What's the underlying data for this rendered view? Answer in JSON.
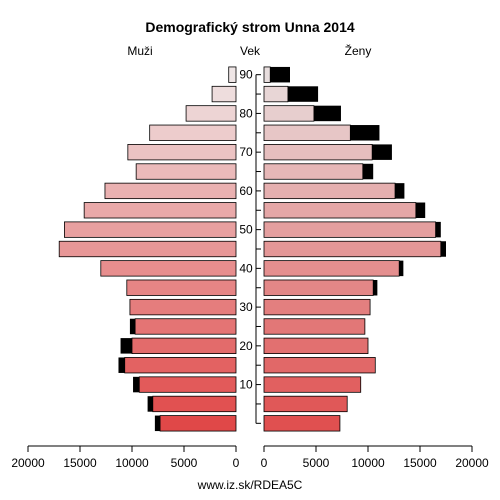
{
  "chart_data": {
    "type": "bar",
    "title": "Demografický strom Unna 2014",
    "left_label": "Muži",
    "right_label": "Ženy",
    "axis_label": "Vek",
    "footer": "www.iz.sk/RDEA5C",
    "xlim": [
      0,
      20000
    ],
    "x_ticks": [
      0,
      5000,
      10000,
      15000,
      20000
    ],
    "x_tick_labels": [
      "0",
      "5000",
      "10000",
      "15000",
      "20000"
    ],
    "age_ticks": [
      10,
      20,
      30,
      40,
      50,
      60,
      70,
      80,
      90
    ],
    "age_groups": [
      "0-4",
      "5-9",
      "10-14",
      "15-19",
      "20-24",
      "25-29",
      "30-34",
      "35-39",
      "40-44",
      "45-49",
      "50-54",
      "55-59",
      "60-64",
      "65-69",
      "70-74",
      "75-79",
      "80-84",
      "85-89",
      "90+"
    ],
    "series": [
      {
        "name": "Muži",
        "values": [
          7300,
          8000,
          9300,
          10700,
          10000,
          9700,
          10200,
          10500,
          13000,
          17000,
          16500,
          14600,
          12600,
          9600,
          10400,
          8300,
          4800,
          2300,
          700
        ],
        "black": [
          500,
          500,
          600,
          600,
          1100,
          500,
          0,
          0,
          0,
          0,
          0,
          0,
          0,
          0,
          0,
          0,
          0,
          0,
          0
        ]
      },
      {
        "name": "Ženy",
        "values": [
          7300,
          8000,
          9300,
          10700,
          10000,
          9700,
          10200,
          10500,
          13000,
          17000,
          16500,
          14600,
          12600,
          9500,
          10400,
          8300,
          4800,
          2300,
          600
        ],
        "black": [
          0,
          0,
          0,
          0,
          0,
          0,
          0,
          400,
          400,
          500,
          500,
          900,
          900,
          1000,
          1900,
          2800,
          2600,
          2900,
          1900
        ]
      }
    ],
    "colors": {
      "male_young": "#e04848",
      "male_old": "#efe6e6",
      "female_young": "#e05050",
      "female_old": "#e8dede",
      "surplus": "#000000",
      "axis": "#000000"
    }
  }
}
